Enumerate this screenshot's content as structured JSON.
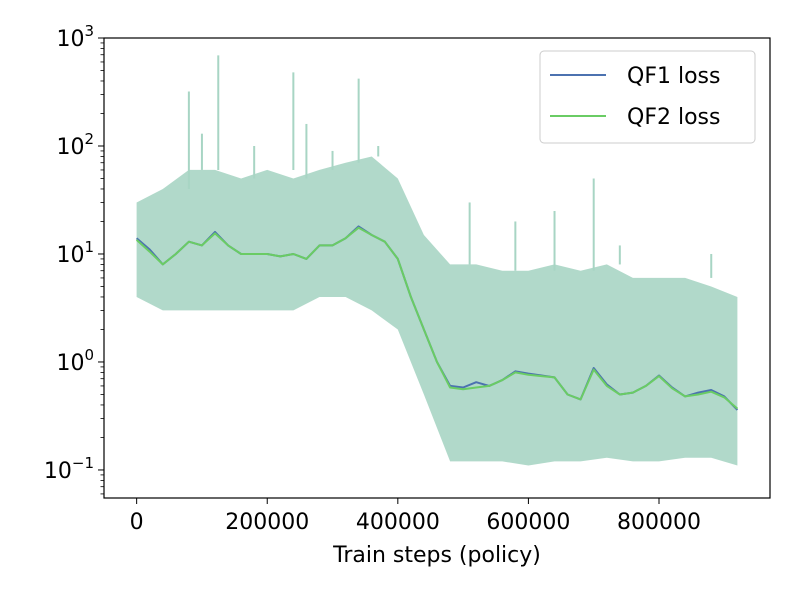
{
  "chart_data": {
    "type": "line",
    "title": "",
    "xlabel": "Train steps (policy)",
    "ylabel": "",
    "xlim": [
      -50000,
      970000
    ],
    "ylim": [
      0.055,
      1000
    ],
    "yscale": "log",
    "grid": false,
    "legend_position": "top-right",
    "x_ticks": [
      {
        "value": 0,
        "label": "0"
      },
      {
        "value": 200000,
        "label": "200000"
      },
      {
        "value": 400000,
        "label": "400000"
      },
      {
        "value": 600000,
        "label": "600000"
      },
      {
        "value": 800000,
        "label": "800000"
      }
    ],
    "y_ticks": [
      {
        "value": 0.1,
        "base": "10",
        "exp": "−1"
      },
      {
        "value": 1,
        "base": "10",
        "exp": "0"
      },
      {
        "value": 10,
        "base": "10",
        "exp": "1"
      },
      {
        "value": 100,
        "base": "10",
        "exp": "2"
      },
      {
        "value": 1000,
        "base": "10",
        "exp": "3"
      }
    ],
    "raw_band": {
      "color": "#a8d5c4",
      "x": [
        0,
        40000,
        80000,
        120000,
        160000,
        200000,
        240000,
        280000,
        320000,
        360000,
        400000,
        440000,
        480000,
        520000,
        560000,
        600000,
        640000,
        680000,
        720000,
        760000,
        800000,
        840000,
        880000,
        920000
      ],
      "low": [
        4,
        3,
        3,
        3,
        3,
        3,
        3,
        4,
        4,
        3,
        2,
        0.5,
        0.12,
        0.12,
        0.12,
        0.11,
        0.12,
        0.12,
        0.13,
        0.12,
        0.12,
        0.13,
        0.13,
        0.11
      ],
      "high": [
        30,
        40,
        60,
        60,
        50,
        60,
        50,
        60,
        70,
        80,
        50,
        15,
        8,
        8,
        7,
        7,
        8,
        7,
        8,
        6,
        6,
        6,
        5,
        4
      ],
      "spikes": [
        {
          "x": 80000,
          "y": 320
        },
        {
          "x": 100000,
          "y": 130
        },
        {
          "x": 125000,
          "y": 690
        },
        {
          "x": 180000,
          "y": 100
        },
        {
          "x": 240000,
          "y": 480
        },
        {
          "x": 260000,
          "y": 160
        },
        {
          "x": 300000,
          "y": 90
        },
        {
          "x": 340000,
          "y": 420
        },
        {
          "x": 370000,
          "y": 100
        },
        {
          "x": 510000,
          "y": 30
        },
        {
          "x": 580000,
          "y": 20
        },
        {
          "x": 640000,
          "y": 25
        },
        {
          "x": 700000,
          "y": 50
        },
        {
          "x": 740000,
          "y": 12
        },
        {
          "x": 880000,
          "y": 10
        }
      ]
    },
    "series": [
      {
        "name": "QF1 loss",
        "color": "#4c72b0",
        "x": [
          0,
          20000,
          40000,
          60000,
          80000,
          100000,
          120000,
          140000,
          160000,
          180000,
          200000,
          220000,
          240000,
          260000,
          280000,
          300000,
          320000,
          340000,
          360000,
          380000,
          400000,
          420000,
          440000,
          460000,
          480000,
          500000,
          520000,
          540000,
          560000,
          580000,
          600000,
          620000,
          640000,
          660000,
          680000,
          700000,
          720000,
          740000,
          760000,
          780000,
          800000,
          820000,
          840000,
          860000,
          880000,
          900000,
          920000
        ],
        "values": [
          14,
          11,
          8,
          10,
          13,
          12,
          16,
          12,
          10,
          10,
          10,
          9.5,
          10,
          9,
          12,
          12,
          14,
          18,
          15,
          13,
          9,
          4,
          2,
          1.0,
          0.6,
          0.58,
          0.65,
          0.6,
          0.68,
          0.82,
          0.78,
          0.75,
          0.72,
          0.5,
          0.45,
          0.88,
          0.62,
          0.5,
          0.52,
          0.6,
          0.75,
          0.58,
          0.48,
          0.52,
          0.55,
          0.48,
          0.36
        ]
      },
      {
        "name": "QF2 loss",
        "color": "#6acc64",
        "x": [
          0,
          20000,
          40000,
          60000,
          80000,
          100000,
          120000,
          140000,
          160000,
          180000,
          200000,
          220000,
          240000,
          260000,
          280000,
          300000,
          320000,
          340000,
          360000,
          380000,
          400000,
          420000,
          440000,
          460000,
          480000,
          500000,
          520000,
          540000,
          560000,
          580000,
          600000,
          620000,
          640000,
          660000,
          680000,
          700000,
          720000,
          740000,
          760000,
          780000,
          800000,
          820000,
          840000,
          860000,
          880000,
          900000,
          920000
        ],
        "values": [
          13.5,
          10.5,
          8,
          10,
          13,
          12,
          15.5,
          12,
          10,
          10,
          10,
          9.5,
          10,
          9,
          12,
          12,
          14,
          17.5,
          15,
          13,
          9,
          4,
          2,
          1.0,
          0.58,
          0.56,
          0.58,
          0.6,
          0.68,
          0.8,
          0.76,
          0.74,
          0.72,
          0.5,
          0.45,
          0.85,
          0.6,
          0.5,
          0.52,
          0.6,
          0.74,
          0.57,
          0.48,
          0.5,
          0.53,
          0.47,
          0.37
        ]
      }
    ]
  }
}
